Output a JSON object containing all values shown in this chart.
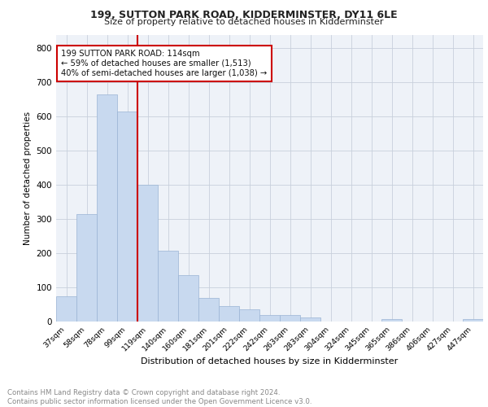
{
  "title": "199, SUTTON PARK ROAD, KIDDERMINSTER, DY11 6LE",
  "subtitle": "Size of property relative to detached houses in Kidderminster",
  "xlabel": "Distribution of detached houses by size in Kidderminster",
  "ylabel": "Number of detached properties",
  "categories": [
    "37sqm",
    "58sqm",
    "78sqm",
    "99sqm",
    "119sqm",
    "140sqm",
    "160sqm",
    "181sqm",
    "201sqm",
    "222sqm",
    "242sqm",
    "263sqm",
    "283sqm",
    "304sqm",
    "324sqm",
    "345sqm",
    "365sqm",
    "386sqm",
    "406sqm",
    "427sqm",
    "447sqm"
  ],
  "values": [
    75,
    315,
    665,
    615,
    400,
    207,
    137,
    70,
    46,
    36,
    20,
    18,
    12,
    0,
    0,
    0,
    7,
    0,
    0,
    0,
    7
  ],
  "bar_color": "#c8d9ef",
  "bar_edge_color": "#9ab4d4",
  "vline_color": "#cc0000",
  "annotation_text": "199 SUTTON PARK ROAD: 114sqm\n← 59% of detached houses are smaller (1,513)\n40% of semi-detached houses are larger (1,038) →",
  "annotation_box_color": "#cc0000",
  "ylim": [
    0,
    840
  ],
  "yticks": [
    0,
    100,
    200,
    300,
    400,
    500,
    600,
    700,
    800
  ],
  "footer_text": "Contains HM Land Registry data © Crown copyright and database right 2024.\nContains public sector information licensed under the Open Government Licence v3.0.",
  "grid_color": "#c8d0dc",
  "background_color": "#eef2f8"
}
